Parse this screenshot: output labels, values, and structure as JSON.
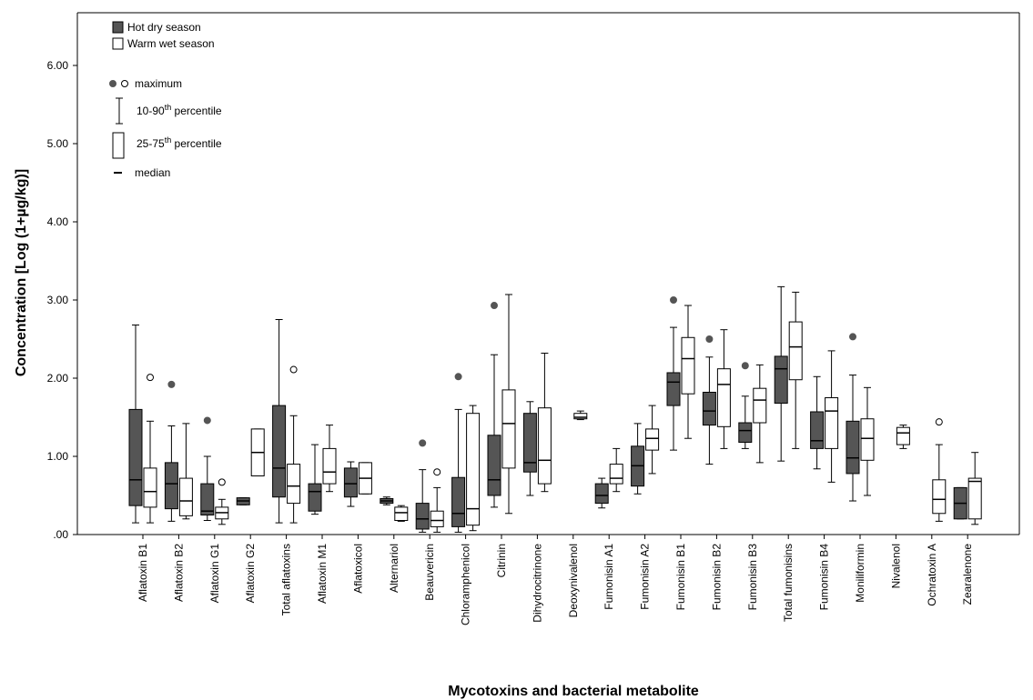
{
  "chart_data": {
    "type": "box",
    "xlabel": "Mycotoxins and bacterial metabolite",
    "ylabel": "Concentration [Log (1+µg/kg)]",
    "ylim": [
      0,
      6.0
    ],
    "yticks": [
      ".00",
      "1.00",
      "2.00",
      "3.00",
      "4.00",
      "5.00",
      "6.00"
    ],
    "grid": false,
    "legend_position": "top-left",
    "legend": {
      "series_entries": [
        "Hot dry season",
        "Warm wet season"
      ],
      "maximum": "maximum",
      "percentile_10_90_prefix": "10-90",
      "percentile_25_75_prefix": "25-75",
      "percentile_suffix_sup": "th",
      "percentile_suffix": " percentile",
      "median": "median"
    },
    "colors": {
      "hot": "#555555",
      "wet": "#ffffff",
      "stroke": "#000000"
    },
    "categories": [
      "Aflatoxin B1",
      "Aflatoxin B2",
      "Aflatoxin G1",
      "Aflatoxin G2",
      "Total aflatoxins",
      "Aflatoxin M1",
      "Aflatoxicol",
      "Alternariol",
      "Beauvericin",
      "Chloramphenicol",
      "Citrinin",
      "Dihydrocitrinone",
      "Deoxynivalenol",
      "Fumonisin A1",
      "Fumonisin A2",
      "Fumonisin B1",
      "Fumonisin B2",
      "Fumonisin B3",
      "Total fumonisins",
      "Fumonisin B4",
      "Moniliformin",
      "Nivalenol",
      "Ochratoxin A",
      "Zearalenone"
    ],
    "series": [
      {
        "name": "Hot dry season",
        "boxes": [
          {
            "p10": 0.15,
            "q1": 0.37,
            "median": 0.7,
            "q3": 1.6,
            "p90": 2.68
          },
          {
            "p10": 0.17,
            "q1": 0.33,
            "median": 0.65,
            "q3": 0.92,
            "p90": 1.39,
            "max": 1.92
          },
          {
            "p10": 0.18,
            "q1": 0.25,
            "median": 0.3,
            "q3": 0.65,
            "p90": 1.0,
            "max": 1.46
          },
          {
            "p10": 0.38,
            "q1": 0.38,
            "median": 0.43,
            "q3": 0.47,
            "p90": 0.47
          },
          {
            "p10": 0.15,
            "q1": 0.48,
            "median": 0.85,
            "q3": 1.65,
            "p90": 2.75
          },
          {
            "p10": 0.26,
            "q1": 0.3,
            "median": 0.55,
            "q3": 0.65,
            "p90": 1.15
          },
          {
            "p10": 0.36,
            "q1": 0.48,
            "median": 0.65,
            "q3": 0.85,
            "p90": 0.93
          },
          {
            "p10": 0.38,
            "q1": 0.4,
            "median": 0.43,
            "q3": 0.46,
            "p90": 0.48
          },
          {
            "p10": 0.03,
            "q1": 0.07,
            "median": 0.2,
            "q3": 0.4,
            "p90": 0.83,
            "max": 1.17
          },
          {
            "p10": 0.03,
            "q1": 0.1,
            "median": 0.27,
            "q3": 0.73,
            "p90": 1.6,
            "max": 2.02
          },
          {
            "p10": 0.35,
            "q1": 0.5,
            "median": 0.7,
            "q3": 1.27,
            "p90": 2.3,
            "max": 2.93
          },
          {
            "p10": 0.5,
            "q1": 0.8,
            "median": 0.92,
            "q3": 1.55,
            "p90": 1.7
          },
          null,
          {
            "p10": 0.34,
            "q1": 0.4,
            "median": 0.5,
            "q3": 0.65,
            "p90": 0.72
          },
          {
            "p10": 0.52,
            "q1": 0.62,
            "median": 0.88,
            "q3": 1.13,
            "p90": 1.42
          },
          {
            "p10": 1.08,
            "q1": 1.65,
            "median": 1.95,
            "q3": 2.07,
            "p90": 2.65,
            "max": 3.0
          },
          {
            "p10": 0.9,
            "q1": 1.4,
            "median": 1.58,
            "q3": 1.82,
            "p90": 2.27,
            "max": 2.5
          },
          {
            "p10": 1.1,
            "q1": 1.18,
            "median": 1.33,
            "q3": 1.43,
            "p90": 1.77,
            "max": 2.16
          },
          {
            "p10": 0.94,
            "q1": 1.68,
            "median": 2.12,
            "q3": 2.28,
            "p90": 3.17
          },
          {
            "p10": 0.84,
            "q1": 1.1,
            "median": 1.2,
            "q3": 1.57,
            "p90": 2.02
          },
          {
            "p10": 0.43,
            "q1": 0.78,
            "median": 0.98,
            "q3": 1.45,
            "p90": 2.04,
            "max": 2.53
          },
          null,
          null,
          {
            "p10": 0.2,
            "q1": 0.2,
            "median": 0.4,
            "q3": 0.6,
            "p90": 0.6
          }
        ]
      },
      {
        "name": "Warm wet season",
        "boxes": [
          {
            "p10": 0.15,
            "q1": 0.35,
            "median": 0.55,
            "q3": 0.85,
            "p90": 1.45,
            "max": 2.01
          },
          {
            "p10": 0.2,
            "q1": 0.24,
            "median": 0.43,
            "q3": 0.72,
            "p90": 1.42
          },
          {
            "p10": 0.13,
            "q1": 0.2,
            "median": 0.28,
            "q3": 0.35,
            "p90": 0.45,
            "max": 0.67
          },
          {
            "p10": 0.75,
            "q1": 0.75,
            "median": 1.05,
            "q3": 1.35,
            "p90": 1.35
          },
          {
            "p10": 0.15,
            "q1": 0.4,
            "median": 0.62,
            "q3": 0.9,
            "p90": 1.52,
            "max": 2.11
          },
          {
            "p10": 0.55,
            "q1": 0.65,
            "median": 0.8,
            "q3": 1.1,
            "p90": 1.4
          },
          {
            "p10": 0.52,
            "q1": 0.52,
            "median": 0.72,
            "q3": 0.92,
            "p90": 0.92
          },
          {
            "p10": 0.17,
            "q1": 0.18,
            "median": 0.28,
            "q3": 0.35,
            "p90": 0.37
          },
          {
            "p10": 0.03,
            "q1": 0.1,
            "median": 0.18,
            "q3": 0.3,
            "p90": 0.6,
            "max": 0.8
          },
          {
            "p10": 0.05,
            "q1": 0.12,
            "median": 0.33,
            "q3": 1.55,
            "p90": 1.65
          },
          {
            "p10": 0.27,
            "q1": 0.85,
            "median": 1.42,
            "q3": 1.85,
            "p90": 3.07
          },
          {
            "p10": 0.55,
            "q1": 0.65,
            "median": 0.95,
            "q3": 1.62,
            "p90": 2.32
          },
          {
            "p10": 1.47,
            "q1": 1.48,
            "median": 1.5,
            "q3": 1.55,
            "p90": 1.58
          },
          {
            "p10": 0.55,
            "q1": 0.65,
            "median": 0.72,
            "q3": 0.9,
            "p90": 1.1
          },
          {
            "p10": 0.78,
            "q1": 1.08,
            "median": 1.23,
            "q3": 1.35,
            "p90": 1.65
          },
          {
            "p10": 1.23,
            "q1": 1.8,
            "median": 2.25,
            "q3": 2.52,
            "p90": 2.93
          },
          {
            "p10": 1.1,
            "q1": 1.38,
            "median": 1.92,
            "q3": 2.12,
            "p90": 2.62
          },
          {
            "p10": 0.92,
            "q1": 1.43,
            "median": 1.72,
            "q3": 1.87,
            "p90": 2.17
          },
          {
            "p10": 1.1,
            "q1": 1.98,
            "median": 2.4,
            "q3": 2.72,
            "p90": 3.1
          },
          {
            "p10": 0.67,
            "q1": 1.1,
            "median": 1.58,
            "q3": 1.75,
            "p90": 2.35
          },
          {
            "p10": 0.5,
            "q1": 0.95,
            "median": 1.23,
            "q3": 1.48,
            "p90": 1.88
          },
          {
            "p10": 1.1,
            "q1": 1.15,
            "median": 1.3,
            "q3": 1.37,
            "p90": 1.4
          },
          {
            "p10": 0.17,
            "q1": 0.27,
            "median": 0.45,
            "q3": 0.7,
            "p90": 1.15,
            "max": 1.44
          },
          {
            "p10": 0.13,
            "q1": 0.2,
            "median": 0.68,
            "q3": 0.72,
            "p90": 1.05
          }
        ]
      }
    ]
  }
}
